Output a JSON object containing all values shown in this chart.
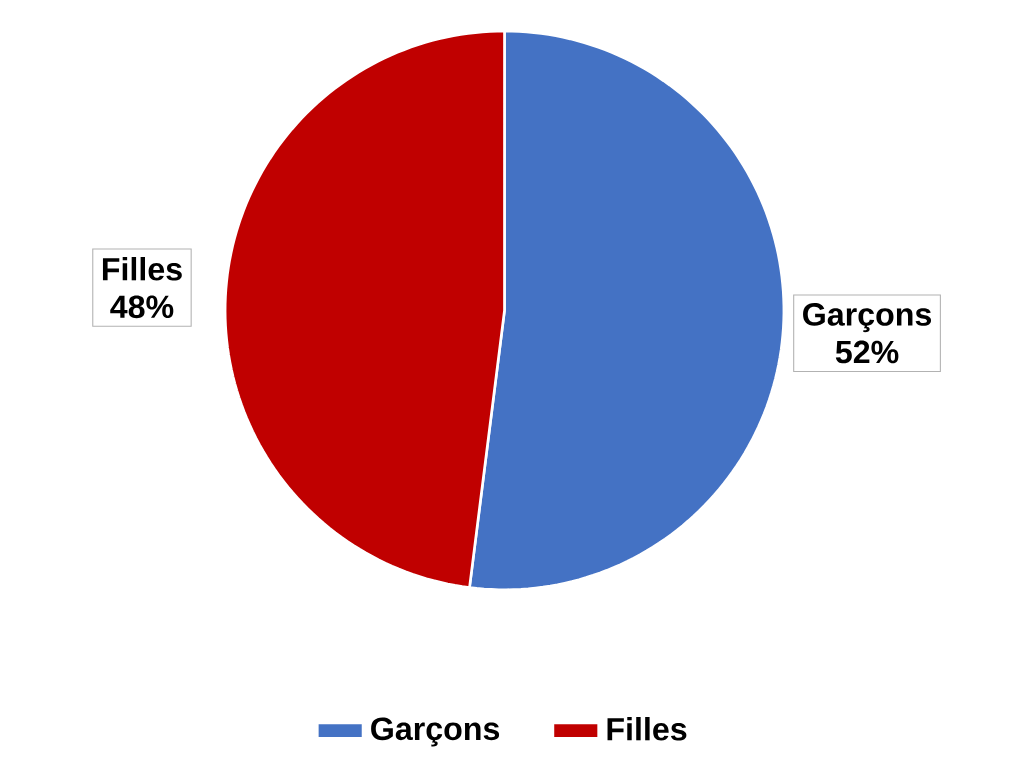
{
  "chart_data": {
    "type": "pie",
    "categories": [
      "Garçons",
      "Filles"
    ],
    "values": [
      52,
      48
    ],
    "colors": [
      "#4472c4",
      "#c00000"
    ],
    "value_labels": [
      "52%",
      "48%"
    ],
    "legend": "bottom"
  }
}
